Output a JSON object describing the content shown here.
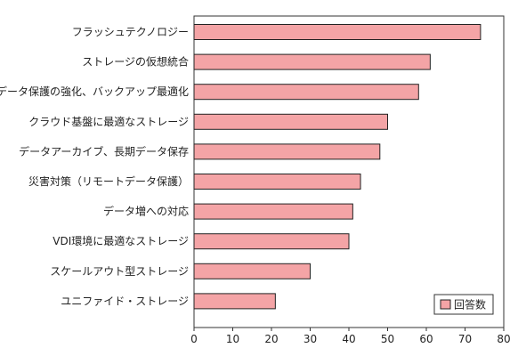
{
  "chart_data": {
    "type": "bar",
    "orientation": "horizontal",
    "title": "",
    "xlabel": "",
    "ylabel": "",
    "categories": [
      "フラッシュテクノロジー",
      "ストレージの仮想統合",
      "データ保護の強化、バックアップ最適化",
      "クラウド基盤に最適なストレージ",
      "データアーカイブ、長期データ保存",
      "災害対策（リモートデータ保護）",
      "データ増への対応",
      "VDI環境に最適なストレージ",
      "スケールアウト型ストレージ",
      "ユニファイド・ストレージ"
    ],
    "series": [
      {
        "name": "回答数",
        "values": [
          74,
          61,
          58,
          50,
          48,
          43,
          41,
          40,
          30,
          21
        ]
      }
    ],
    "xlim": [
      0,
      80
    ],
    "xticks": [
      0,
      10,
      20,
      30,
      40,
      50,
      60,
      70,
      80
    ],
    "grid": false,
    "legend": "bottom-right",
    "colors": {
      "bar_fill": "#f4a4a6",
      "bar_stroke": "#222222",
      "axis": "#333333",
      "frame": "#333333"
    }
  }
}
